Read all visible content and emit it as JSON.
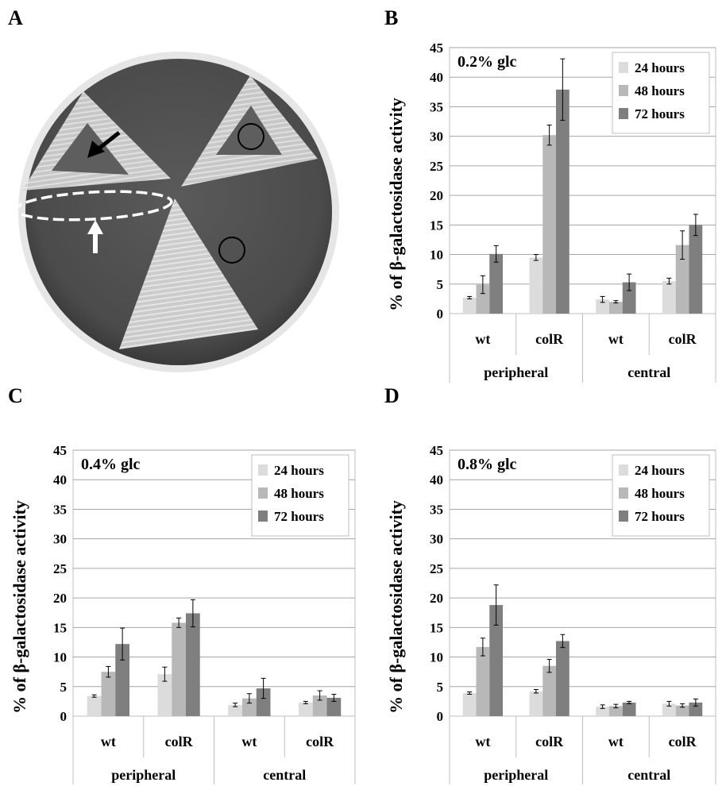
{
  "panels": {
    "A": "A",
    "B": "B",
    "C": "C",
    "D": "D"
  },
  "plate": {
    "description_colors": {
      "background": "#505050",
      "streak": "#d8d8d8"
    }
  },
  "chart_data": [
    {
      "id": "B",
      "type": "bar",
      "title": "0.2% glc",
      "ylabel": "% of β-galactosidase activity",
      "ylim": [
        0,
        45
      ],
      "yticks": [
        0,
        5,
        10,
        15,
        20,
        25,
        30,
        35,
        40,
        45
      ],
      "categories": [
        "wt",
        "colR",
        "wt",
        "colR"
      ],
      "groups": [
        {
          "label": "peripheral",
          "span": [
            0,
            1
          ]
        },
        {
          "label": "central",
          "span": [
            2,
            3
          ]
        }
      ],
      "series": [
        {
          "name": "24 hours",
          "color": "#dcdcdc",
          "values": [
            2.7,
            9.5,
            2.4,
            5.5
          ],
          "errors": [
            0.2,
            0.5,
            0.5,
            0.5
          ]
        },
        {
          "name": "48 hours",
          "color": "#b8b8b8",
          "values": [
            4.9,
            30.2,
            2.0,
            11.6
          ],
          "errors": [
            1.5,
            1.7,
            0.2,
            2.4
          ]
        },
        {
          "name": "72 hours",
          "color": "#7f7f7f",
          "values": [
            10.1,
            37.9,
            5.3,
            15.0
          ],
          "errors": [
            1.4,
            5.2,
            1.4,
            1.8
          ]
        }
      ],
      "legend": "top-right",
      "grid": true
    },
    {
      "id": "C",
      "type": "bar",
      "title": "0.4% glc",
      "ylabel": "% of β-galactosidase activity",
      "ylim": [
        0,
        45
      ],
      "yticks": [
        0,
        5,
        10,
        15,
        20,
        25,
        30,
        35,
        40,
        45
      ],
      "categories": [
        "wt",
        "colR",
        "wt",
        "colR"
      ],
      "groups": [
        {
          "label": "peripheral",
          "span": [
            0,
            1
          ]
        },
        {
          "label": "central",
          "span": [
            2,
            3
          ]
        }
      ],
      "series": [
        {
          "name": "24 hours",
          "color": "#dcdcdc",
          "values": [
            3.4,
            7.1,
            1.9,
            2.3
          ],
          "errors": [
            0.2,
            1.2,
            0.3,
            0.2
          ]
        },
        {
          "name": "48 hours",
          "color": "#b8b8b8",
          "values": [
            7.5,
            15.8,
            3.0,
            3.5
          ],
          "errors": [
            0.9,
            0.8,
            0.8,
            0.8
          ]
        },
        {
          "name": "72 hours",
          "color": "#7f7f7f",
          "values": [
            12.2,
            17.4,
            4.7,
            3.1
          ],
          "errors": [
            2.7,
            2.3,
            1.7,
            0.6
          ]
        }
      ],
      "legend": "top-right",
      "grid": true
    },
    {
      "id": "D",
      "type": "bar",
      "title": "0.8% glc",
      "ylabel": "% of β-galactosidase activity",
      "ylim": [
        0,
        45
      ],
      "yticks": [
        0,
        5,
        10,
        15,
        20,
        25,
        30,
        35,
        40,
        45
      ],
      "categories": [
        "wt",
        "colR",
        "wt",
        "colR"
      ],
      "groups": [
        {
          "label": "peripheral",
          "span": [
            0,
            1
          ]
        },
        {
          "label": "central",
          "span": [
            2,
            3
          ]
        }
      ],
      "series": [
        {
          "name": "24 hours",
          "color": "#dcdcdc",
          "values": [
            3.9,
            4.2,
            1.6,
            2.1
          ],
          "errors": [
            0.2,
            0.3,
            0.3,
            0.4
          ]
        },
        {
          "name": "48 hours",
          "color": "#b8b8b8",
          "values": [
            11.7,
            8.5,
            1.7,
            1.8
          ],
          "errors": [
            1.5,
            1.1,
            0.3,
            0.3
          ]
        },
        {
          "name": "72 hours",
          "color": "#7f7f7f",
          "values": [
            18.8,
            12.7,
            2.3,
            2.3
          ],
          "errors": [
            3.4,
            1.1,
            0.2,
            0.6
          ]
        }
      ],
      "legend": "top-right",
      "grid": true
    }
  ]
}
